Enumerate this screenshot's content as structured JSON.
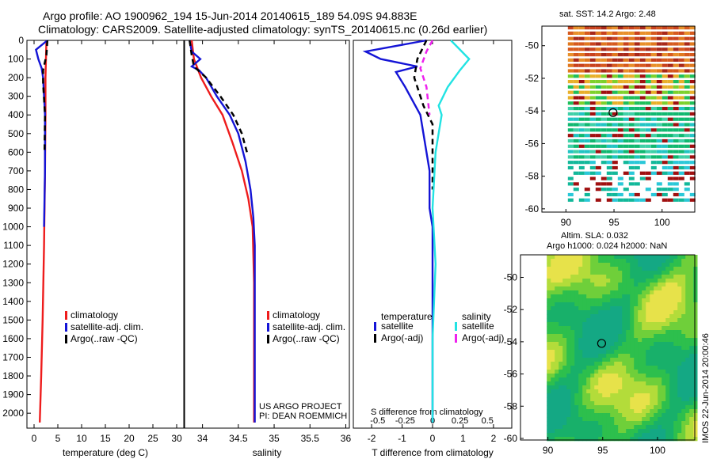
{
  "header": {
    "title_line1": "Argo profile: AO 1900962_194 15-Jun-2014 20140615_189 54.09S 94.883E",
    "title_line2": "Climatology: CARS2009. Satellite-adjusted climatology: synTS_20140615.nc (0.26d earlier)"
  },
  "colors": {
    "climatology": "#ee1c1c",
    "satellite": "#1414d6",
    "argo": "#000000",
    "satellite_salinity": "#22e3e3",
    "argo_salinity": "#ee22ee"
  },
  "chart_data": [
    {
      "type": "line",
      "id": "temperature",
      "xlabel": "temperature (deg C)",
      "ylabel": "",
      "xlim": [
        -1.5,
        31.5
      ],
      "ylim": [
        2080,
        0
      ],
      "xticks": [
        0,
        5,
        10,
        15,
        20,
        25,
        30
      ],
      "yticks": [
        0,
        100,
        200,
        300,
        400,
        500,
        600,
        700,
        800,
        900,
        1000,
        1100,
        1200,
        1300,
        1400,
        1500,
        1600,
        1700,
        1800,
        1900,
        2000
      ],
      "legend": [
        "climatology",
        "satellite-adj. clim.",
        "Argo(..raw -QC)"
      ],
      "series": [
        {
          "name": "climatology",
          "color_key": "climatology",
          "dash": "solid",
          "points": [
            [
              2.6,
              0
            ],
            [
              2.5,
              100
            ],
            [
              2.4,
              200
            ],
            [
              2.4,
              400
            ],
            [
              2.3,
              700
            ],
            [
              2.1,
              1100
            ],
            [
              1.8,
              1500
            ],
            [
              1.5,
              1800
            ],
            [
              1.2,
              2050
            ]
          ]
        },
        {
          "name": "satellite-adj. clim.",
          "color_key": "satellite",
          "dash": "solid",
          "points": [
            [
              2.8,
              0
            ],
            [
              0.4,
              50
            ],
            [
              0.9,
              100
            ],
            [
              1.6,
              150
            ],
            [
              1.9,
              200
            ],
            [
              2.3,
              400
            ],
            [
              2.3,
              700
            ],
            [
              2.1,
              1000
            ]
          ]
        },
        {
          "name": "Argo(..raw -QC)",
          "color_key": "argo",
          "dash": "dashed",
          "points": [
            [
              2.8,
              0
            ],
            [
              2.6,
              80
            ],
            [
              1.9,
              160
            ],
            [
              1.9,
              230
            ],
            [
              2.3,
              400
            ],
            [
              2.2,
              600
            ]
          ]
        }
      ]
    },
    {
      "type": "line",
      "id": "salinity",
      "xlabel": "salinity",
      "xlim": [
        33.75,
        36.05
      ],
      "ylim": [
        2080,
        0
      ],
      "xticks": [
        34,
        34.5,
        35,
        35.5,
        36
      ],
      "legend": [
        "climatology",
        "satellite-adj. clim.",
        "Argo(..raw -QC)"
      ],
      "series": [
        {
          "name": "climatology",
          "color_key": "climatology",
          "dash": "solid",
          "points": [
            [
              33.85,
              0
            ],
            [
              33.88,
              100
            ],
            [
              33.98,
              200
            ],
            [
              34.12,
              300
            ],
            [
              34.28,
              400
            ],
            [
              34.42,
              550
            ],
            [
              34.55,
              700
            ],
            [
              34.64,
              850
            ],
            [
              34.7,
              1000
            ],
            [
              34.72,
              1300
            ],
            [
              34.72,
              1600
            ],
            [
              34.72,
              2050
            ]
          ]
        },
        {
          "name": "satellite-adj. clim.",
          "color_key": "satellite",
          "dash": "solid",
          "points": [
            [
              33.82,
              0
            ],
            [
              33.85,
              60
            ],
            [
              33.97,
              100
            ],
            [
              33.85,
              140
            ],
            [
              33.95,
              160
            ],
            [
              34.05,
              200
            ],
            [
              34.2,
              300
            ],
            [
              34.38,
              400
            ],
            [
              34.5,
              500
            ],
            [
              34.6,
              650
            ],
            [
              34.67,
              800
            ],
            [
              34.71,
              950
            ],
            [
              34.73,
              1100
            ],
            [
              34.73,
              1500
            ],
            [
              34.73,
              2050
            ]
          ]
        },
        {
          "name": "Argo(..raw -QC)",
          "color_key": "argo",
          "dash": "dashed",
          "points": [
            [
              33.82,
              0
            ],
            [
              33.85,
              80
            ],
            [
              33.88,
              140
            ],
            [
              34.05,
              200
            ],
            [
              34.25,
              300
            ],
            [
              34.43,
              400
            ],
            [
              34.55,
              500
            ],
            [
              34.62,
              600
            ]
          ]
        }
      ]
    },
    {
      "type": "line",
      "id": "difference",
      "xlabel": "T difference from climatology",
      "x2label": "S difference from climatology",
      "xlim": [
        -2.6,
        2.6
      ],
      "ylim": [
        2080,
        0
      ],
      "xticks": [
        -2,
        -1,
        0,
        1,
        2
      ],
      "x2ticks": [
        "-0.5",
        "-0.25",
        "0",
        "0.25",
        "0.5"
      ],
      "legend_headers": [
        "temperature",
        "salinity"
      ],
      "legend": [
        "satellite",
        "Argo(-adj)",
        "satellite",
        "Argo(-adj)"
      ],
      "series": [
        {
          "name": "temperature satellite",
          "color_key": "satellite",
          "dash": "solid",
          "points": [
            [
              -0.2,
              0
            ],
            [
              -2.2,
              60
            ],
            [
              -1.7,
              100
            ],
            [
              -0.5,
              140
            ],
            [
              -1.2,
              170
            ],
            [
              -0.9,
              250
            ],
            [
              -0.4,
              400
            ],
            [
              -0.1,
              700
            ],
            [
              -0.1,
              900
            ],
            [
              0,
              1000
            ],
            [
              0,
              1400
            ],
            [
              0,
              2050
            ]
          ]
        },
        {
          "name": "temperature Argo(-adj)",
          "color_key": "argo",
          "dash": "dashed",
          "points": [
            [
              -0.2,
              0
            ],
            [
              -0.5,
              100
            ],
            [
              -0.6,
              200
            ],
            [
              -0.3,
              350
            ],
            [
              0,
              450
            ],
            [
              0,
              800
            ]
          ]
        },
        {
          "name": "salinity satellite",
          "color_key": "satellite_salinity",
          "dash": "solid",
          "points": [
            [
              0.6,
              0
            ],
            [
              1.2,
              100
            ],
            [
              0.9,
              160
            ],
            [
              0.5,
              250
            ],
            [
              0.2,
              350
            ],
            [
              0.3,
              400
            ],
            [
              0.1,
              600
            ],
            [
              0,
              900
            ],
            [
              0.1,
              1200
            ],
            [
              0,
              1600
            ],
            [
              0,
              2050
            ]
          ]
        },
        {
          "name": "salinity Argo(-adj)",
          "color_key": "argo_salinity",
          "dash": "dashed",
          "points": [
            [
              0,
              0
            ],
            [
              -0.2,
              60
            ],
            [
              -0.4,
              150
            ],
            [
              -0.2,
              250
            ],
            [
              -0.1,
              400
            ]
          ]
        }
      ]
    },
    {
      "type": "heatmap",
      "id": "sst_map",
      "title": "sat. SST: 14.2 Argo: 2.48",
      "xticks": [
        90,
        95,
        100
      ],
      "yticks": [
        -50,
        -52,
        -54,
        -56,
        -58,
        -60
      ],
      "xlim": [
        87.5,
        103.4
      ],
      "ylim": [
        -60.2,
        -48.8
      ],
      "argo_position": [
        94.9,
        -54.1
      ]
    },
    {
      "type": "heatmap",
      "id": "sla_map",
      "title": "Altim. SLA: 0.032",
      "subtitle": "Argo h1000: 0.024 h2000: NaN",
      "xticks": [
        90,
        95,
        100
      ],
      "yticks": [
        -50,
        -52,
        -54,
        -56,
        -58,
        -60
      ],
      "xlim": [
        87.5,
        103.4
      ],
      "ylim": [
        -60.1,
        -48.6
      ],
      "argo_position": [
        94.9,
        -54.1
      ]
    }
  ],
  "footer": {
    "project": "US ARGO PROJECT",
    "pi": "PI: DEAN ROEMMICH",
    "stamp": "IMOS 22-Jun-2014 20:00:46"
  }
}
